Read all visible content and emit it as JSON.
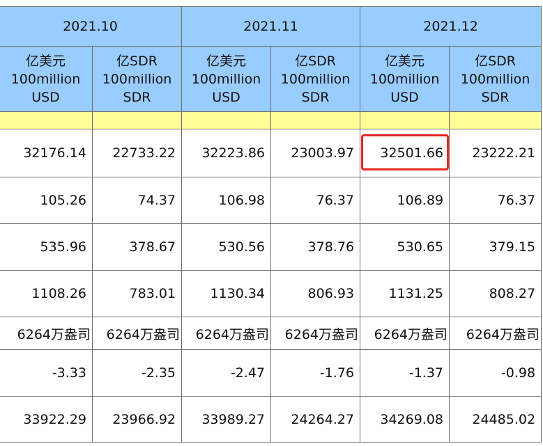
{
  "months": [
    "2021.10",
    "2021.11",
    "2021.12"
  ],
  "units": {
    "usd": [
      "亿美元",
      "100million",
      "USD"
    ],
    "sdr": [
      "亿SDR",
      "100million",
      "SDR"
    ]
  },
  "rows": [
    [
      "32176.14",
      "22733.22",
      "32223.86",
      "23003.97",
      "32501.66",
      "23222.21"
    ],
    [
      "105.26",
      "74.37",
      "106.98",
      "76.37",
      "106.89",
      "76.37"
    ],
    [
      "535.96",
      "378.67",
      "530.56",
      "378.76",
      "530.65",
      "379.15"
    ],
    [
      "1108.26",
      "783.01",
      "1130.34",
      "806.93",
      "1131.25",
      "808.27"
    ],
    [
      "6264万盎司",
      "6264万盎司",
      "6264万盎司",
      "6264万盎司",
      "6264万盎司",
      "6264万盎司"
    ],
    [
      "-3.33",
      "-2.35",
      "-2.47",
      "-1.76",
      "-1.37",
      "-0.98"
    ],
    [
      "33922.29",
      "23966.92",
      "33989.27",
      "24264.27",
      "34269.08",
      "24485.02"
    ]
  ],
  "highlight_color": "#e8261e",
  "header_color": "#99ccff",
  "spacer_color": "#ffff99"
}
